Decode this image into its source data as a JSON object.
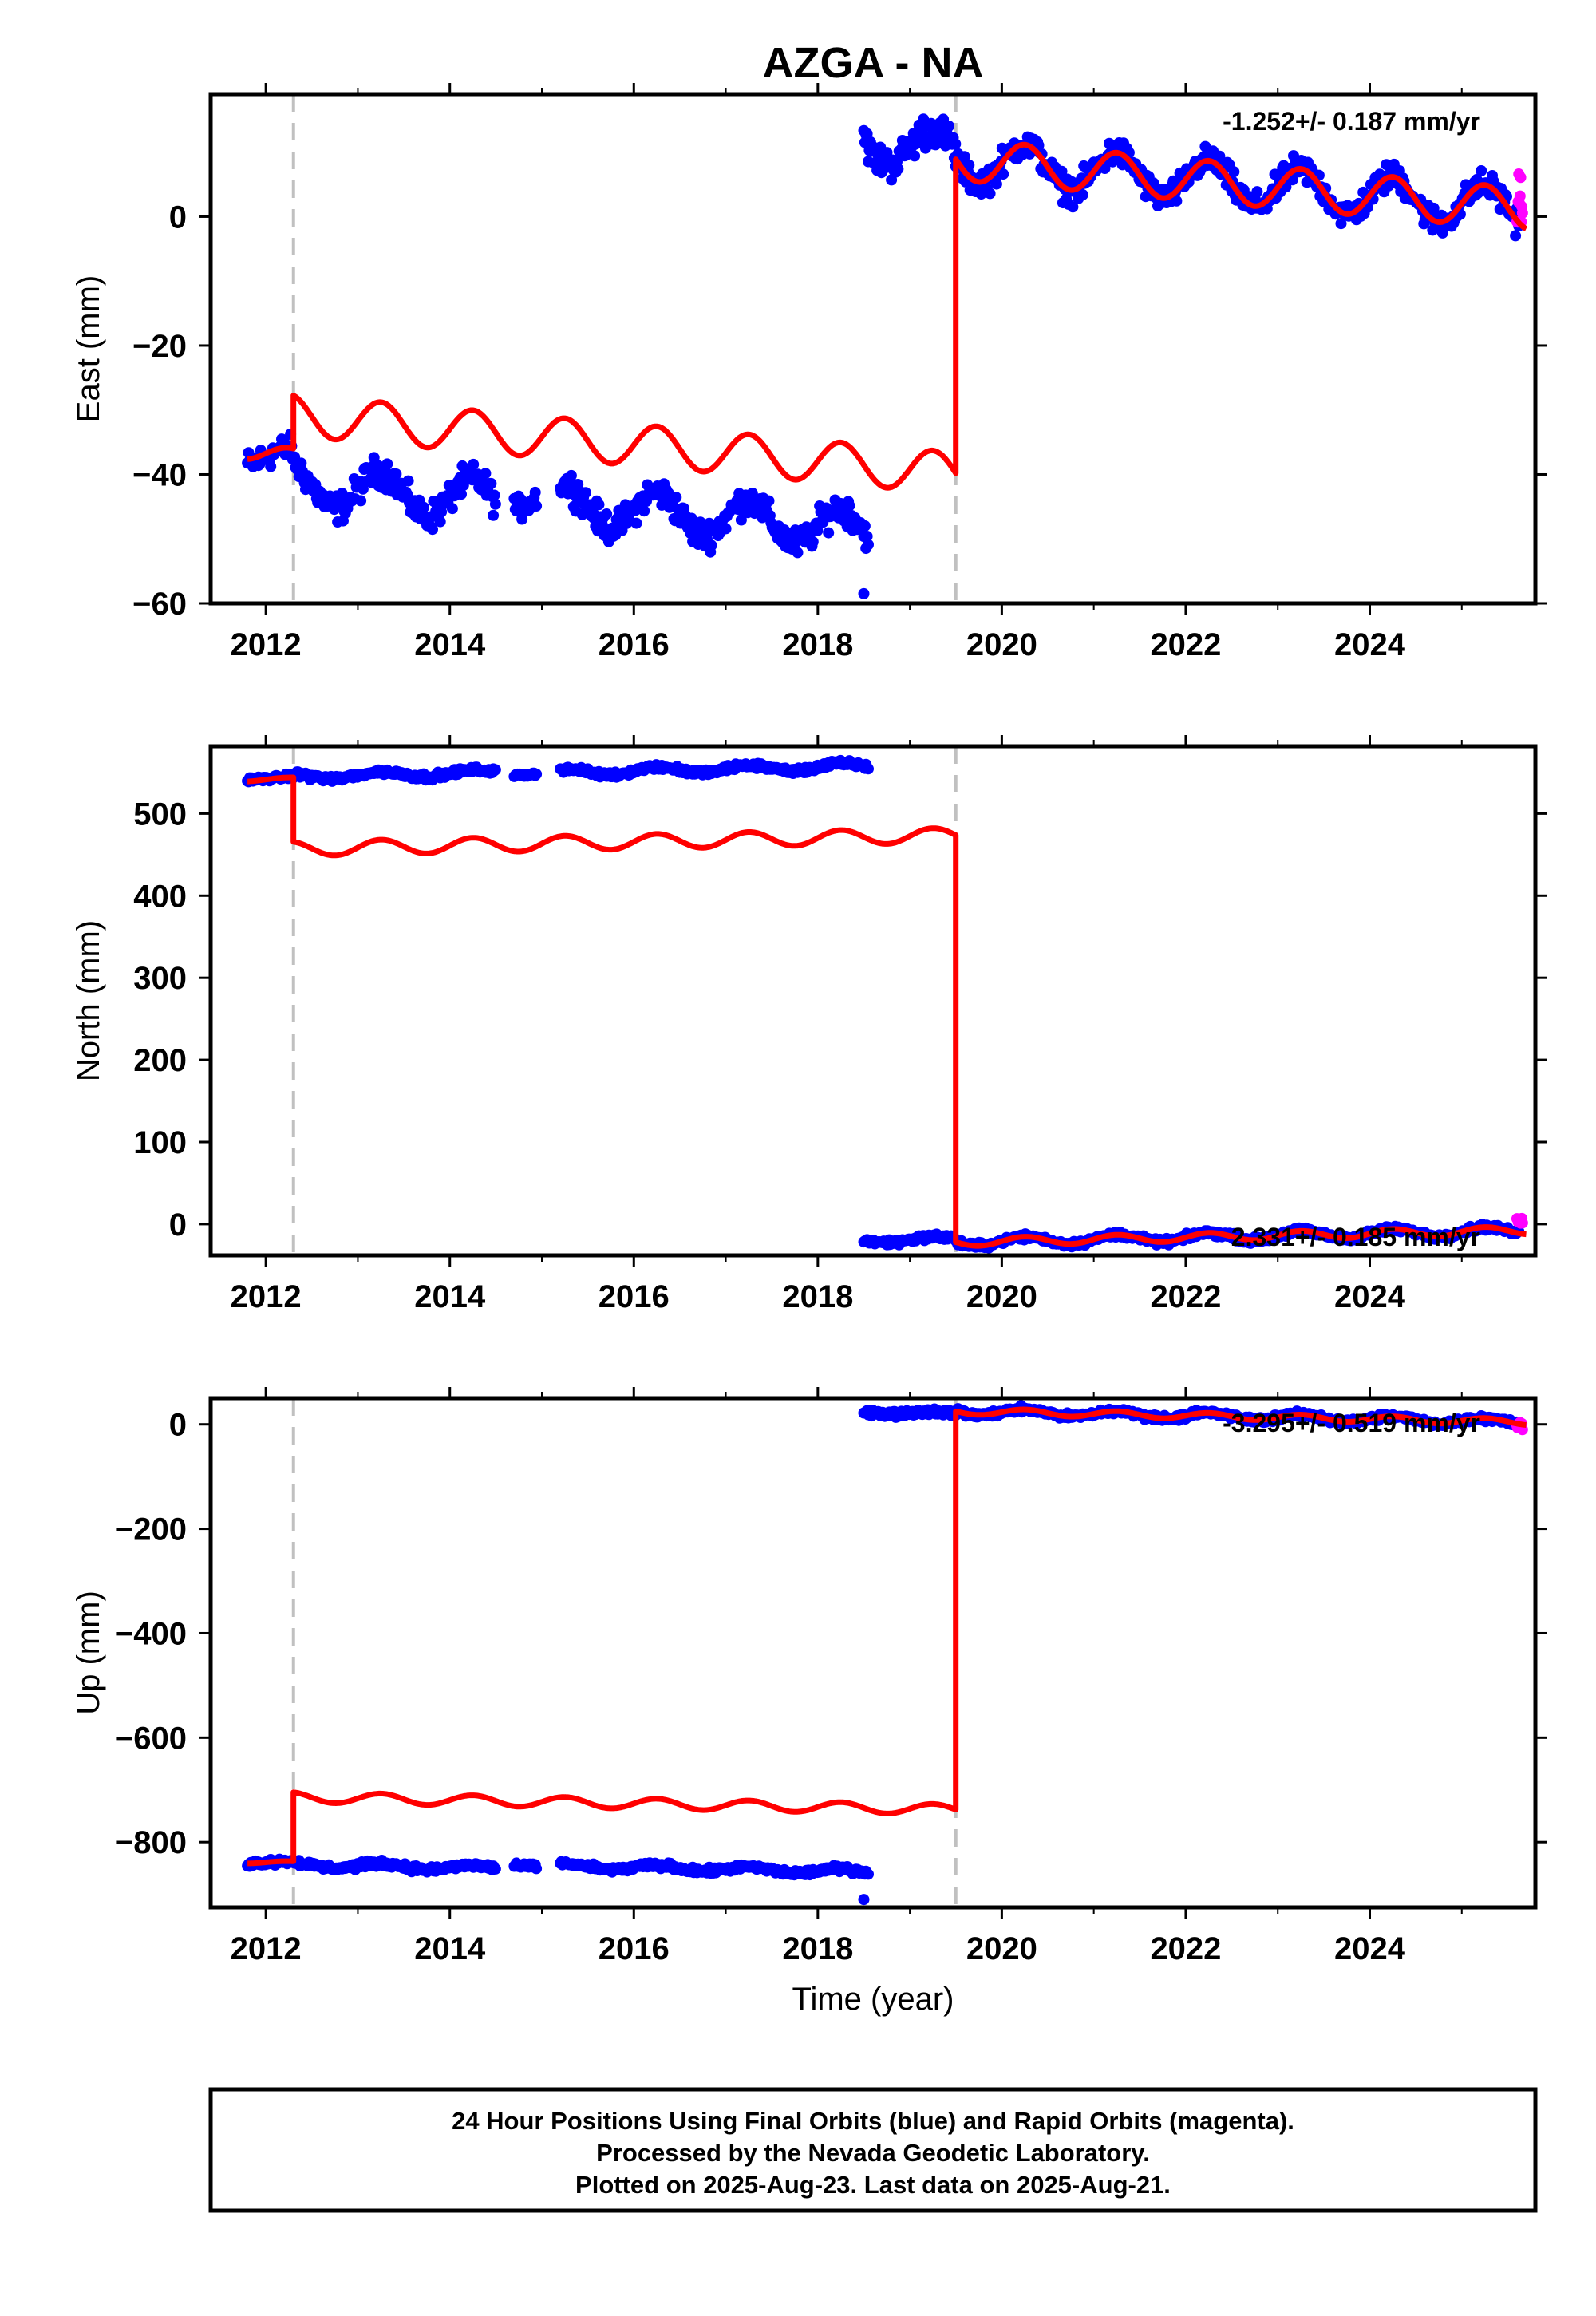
{
  "title": "AZGA - NA",
  "footer": {
    "lines": [
      "24 Hour Positions Using Final Orbits (blue) and Rapid Orbits (magenta).",
      "Processed by the Nevada Geodetic Laboratory.",
      "Plotted on 2025-Aug-23. Last data on 2025-Aug-21."
    ]
  },
  "colors": {
    "final_orbits": "#0000ff",
    "rapid_orbits": "#ff00ff",
    "model": "#ff0000",
    "event_lines": "#c0c0c0",
    "frame": "#000000"
  },
  "chart_data": [
    {
      "type": "scatter",
      "panel": "east",
      "ylabel": "East (mm)",
      "xlabel": "",
      "rate_text": "-1.252+/- 0.187 mm/yr",
      "xlim": [
        2011.4,
        2025.8
      ],
      "ylim": [
        -60,
        19
      ],
      "xticks": [
        2012,
        2014,
        2016,
        2018,
        2020,
        2022,
        2024
      ],
      "yticks": [
        -60,
        -40,
        -20,
        0
      ],
      "ytick_labels": [
        "−60",
        "−40",
        "−20",
        "0"
      ],
      "event_lines_x": [
        2012.3,
        2019.5
      ],
      "model_offsets": [
        {
          "x0": 2011.8,
          "x1": 2012.3,
          "base": -36.5,
          "slope": -1.25,
          "amp": 1.2
        },
        {
          "x0": 2012.3,
          "x1": 2019.5,
          "base": -30.8,
          "slope": -1.25,
          "amp": 3.2
        },
        {
          "x0": 2019.5,
          "x1": 2025.7,
          "base": 8.9,
          "slope": -1.25,
          "amp": 3.2
        }
      ],
      "observations": [
        {
          "x0": 2011.8,
          "x1": 2012.3,
          "base": -37,
          "slope": -1.25,
          "amp": 1.5,
          "noise": 1.5
        },
        {
          "x0": 2012.3,
          "x1": 2014.5,
          "base": -41.5,
          "slope": -1.25,
          "amp": 3.2,
          "noise": 1.6
        },
        {
          "x0": 2014.7,
          "x1": 2014.95,
          "base": -42,
          "slope": -1.25,
          "amp": 3.2,
          "noise": 1.2
        },
        {
          "x0": 2015.2,
          "x1": 2018.55,
          "base": -44.5,
          "slope": -1.25,
          "amp": 3.0,
          "noise": 1.6
        },
        {
          "x0": 2018.5,
          "x1": 2019.5,
          "base": 11.5,
          "slope": -1.25,
          "amp": 3.0,
          "noise": 1.8
        },
        {
          "x0": 2019.5,
          "x1": 2025.62,
          "base": 8.9,
          "slope": -1.25,
          "amp": 3.2,
          "noise": 1.5
        }
      ],
      "outliers": [
        {
          "x": 2018.5,
          "y": -58.5
        }
      ],
      "rapid_observations": {
        "x0": 2025.6,
        "x1": 2025.66,
        "y0": -2,
        "y1": 7
      }
    },
    {
      "type": "scatter",
      "panel": "north",
      "ylabel": "North (mm)",
      "xlabel": "",
      "rate_text": "2.331+/- 0.185 mm/yr",
      "xlim": [
        2011.4,
        2025.8
      ],
      "ylim": [
        -38,
        582
      ],
      "xticks": [
        2012,
        2014,
        2016,
        2018,
        2020,
        2022,
        2024
      ],
      "yticks": [
        0,
        100,
        200,
        300,
        400,
        500
      ],
      "ytick_labels": [
        "0",
        "100",
        "200",
        "300",
        "400",
        "500"
      ],
      "event_lines_x": [
        2012.3,
        2019.5
      ],
      "model_offsets": [
        {
          "x0": 2011.8,
          "x1": 2012.3,
          "base": 541,
          "slope": 2.33,
          "amp": 2
        },
        {
          "x0": 2012.3,
          "x1": 2019.5,
          "base": 457,
          "slope": 2.33,
          "amp": 9
        },
        {
          "x0": 2019.5,
          "x1": 2025.7,
          "base": -22,
          "slope": 2.33,
          "amp": 5
        }
      ],
      "observations": [
        {
          "x0": 2011.8,
          "x1": 2012.3,
          "base": 542,
          "slope": 2.33,
          "amp": 1.5,
          "noise": 2
        },
        {
          "x0": 2012.3,
          "x1": 2014.5,
          "base": 545,
          "slope": 2.33,
          "amp": 3.5,
          "noise": 2.5
        },
        {
          "x0": 2014.7,
          "x1": 2014.95,
          "base": 549,
          "slope": 2.33,
          "amp": 2,
          "noise": 1.5
        },
        {
          "x0": 2015.2,
          "x1": 2018.55,
          "base": 550,
          "slope": 2.33,
          "amp": 4,
          "noise": 2.5
        },
        {
          "x0": 2018.5,
          "x1": 2019.5,
          "base": -20,
          "slope": 2.33,
          "amp": 3,
          "noise": 2.5
        },
        {
          "x0": 2019.5,
          "x1": 2025.62,
          "base": -22,
          "slope": 2.33,
          "amp": 5,
          "noise": 2.5
        }
      ],
      "outliers": [],
      "rapid_observations": {
        "x0": 2025.6,
        "x1": 2025.66,
        "y0": 1,
        "y1": 8
      }
    },
    {
      "type": "scatter",
      "panel": "up",
      "ylabel": "Up (mm)",
      "xlabel": "Time (year)",
      "rate_text": "-3.295+/- 0.519 mm/yr",
      "xlim": [
        2011.4,
        2025.8
      ],
      "ylim": [
        -925,
        50
      ],
      "xticks": [
        2012,
        2014,
        2016,
        2018,
        2020,
        2022,
        2024
      ],
      "yticks": [
        -800,
        -600,
        -400,
        -200,
        0
      ],
      "ytick_labels": [
        "−800",
        "−600",
        "−400",
        "−200",
        "0"
      ],
      "event_lines_x": [
        2012.3,
        2019.5
      ],
      "model_offsets": [
        {
          "x0": 2011.8,
          "x1": 2012.3,
          "base": -838,
          "slope": -3.3,
          "amp": 3
        },
        {
          "x0": 2012.3,
          "x1": 2019.5,
          "base": -714,
          "slope": -3.3,
          "amp": 10
        },
        {
          "x0": 2019.5,
          "x1": 2025.7,
          "base": 25,
          "slope": -3.3,
          "amp": 6
        }
      ],
      "observations": [
        {
          "x0": 2011.8,
          "x1": 2012.3,
          "base": -838,
          "slope": -3.3,
          "amp": 3,
          "noise": 4
        },
        {
          "x0": 2012.3,
          "x1": 2014.5,
          "base": -843,
          "slope": -3.3,
          "amp": 5,
          "noise": 4
        },
        {
          "x0": 2014.7,
          "x1": 2014.95,
          "base": -843,
          "slope": -3.3,
          "amp": 3,
          "noise": 3
        },
        {
          "x0": 2015.2,
          "x1": 2018.55,
          "base": -846,
          "slope": -3.3,
          "amp": 5,
          "noise": 4
        },
        {
          "x0": 2018.5,
          "x1": 2019.5,
          "base": 24,
          "slope": -3.3,
          "amp": 3,
          "noise": 4
        },
        {
          "x0": 2019.5,
          "x1": 2025.62,
          "base": 25,
          "slope": -3.3,
          "amp": 6,
          "noise": 4
        }
      ],
      "outliers": [
        {
          "x": 2018.5,
          "y": -910
        }
      ],
      "rapid_observations": {
        "x0": 2025.6,
        "x1": 2025.66,
        "y0": -12,
        "y1": 4
      }
    }
  ]
}
